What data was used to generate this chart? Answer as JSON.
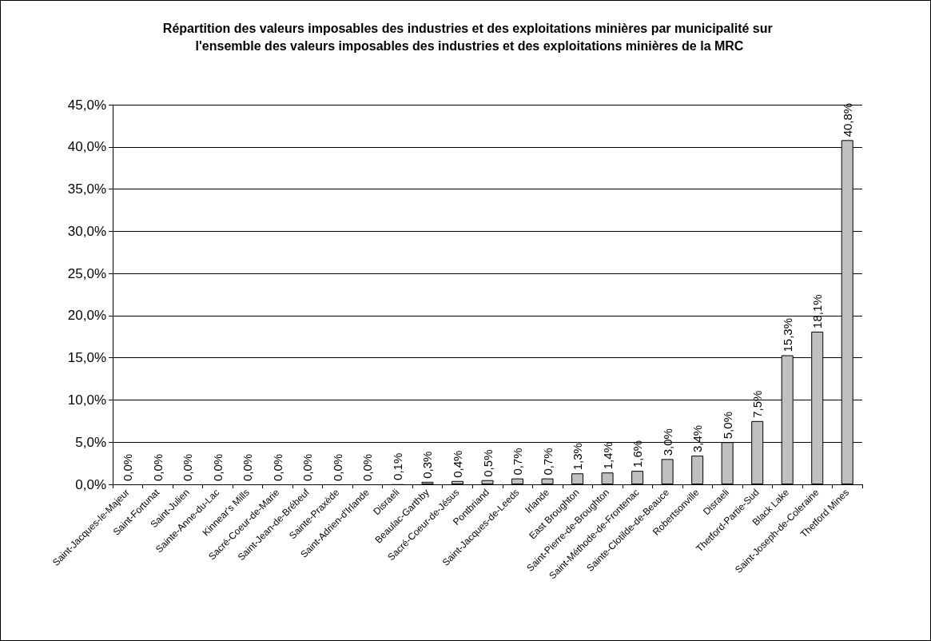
{
  "chart_data": {
    "type": "bar",
    "title": "Répartition des valeurs imposables des industries et des exploitations minières par municipalité sur l'ensemble des valeurs imposables des industries et des exploitations minières de la MRC",
    "categories": [
      "Saint-Jacques-le-Majeur",
      "Saint-Fortunat",
      "Saint-Julien",
      "Sainte-Anne-du-Lac",
      "Kinnear's Mills",
      "Sacré-Coeur-de-Marie",
      "Saint-Jean-de-Brébeuf",
      "Sainte-Praxède",
      "Saint-Adrien-d'Irlande",
      "Disraeli",
      "Beaulac-Garthby",
      "Sacré-Coeur-de-Jésus",
      "Pontbriand",
      "Saint-Jacques-de-Leeds",
      "Irlande",
      "East Broughton",
      "Saint-Pierre-de-Broughton",
      "Saint-Méthode-de-Frontenac",
      "Sainte-Clotilde-de-Beauce",
      "Robertsonville",
      "Disraeli",
      "Thetford-Partie-Sud",
      "Black Lake",
      "Saint-Joseph-de-Coleraine",
      "Thetford Mines"
    ],
    "values": [
      0,
      0,
      0,
      0,
      0,
      0,
      0,
      0,
      0,
      0.1,
      0.3,
      0.4,
      0.5,
      0.7,
      0.7,
      1.3,
      1.4,
      1.6,
      3.0,
      3.4,
      5.0,
      7.5,
      15.3,
      18.1,
      40.8
    ],
    "value_labels": [
      "0,0%",
      "0,0%",
      "0,0%",
      "0,0%",
      "0,0%",
      "0,0%",
      "0,0%",
      "0,0%",
      "0,0%",
      "0,1%",
      "0,3%",
      "0,4%",
      "0,5%",
      "0,7%",
      "0,7%",
      "1,3%",
      "1,4%",
      "1,6%",
      "3,0%",
      "3,4%",
      "5,0%",
      "7,5%",
      "15,3%",
      "18,1%",
      "40,8%"
    ],
    "color": "#c0c0c0",
    "ylim": [
      0,
      45
    ],
    "yticks": [
      {
        "value": 0,
        "label": "0,0%"
      },
      {
        "value": 5,
        "label": "5,0%"
      },
      {
        "value": 10,
        "label": "10,0%"
      },
      {
        "value": 15,
        "label": "15,0%"
      },
      {
        "value": 20,
        "label": "20,0%"
      },
      {
        "value": 25,
        "label": "25,0%"
      },
      {
        "value": 30,
        "label": "30,0%"
      },
      {
        "value": 35,
        "label": "35,0%"
      },
      {
        "value": 40,
        "label": "40,0%"
      },
      {
        "value": 45,
        "label": "45,0%"
      }
    ],
    "grid": "y"
  }
}
